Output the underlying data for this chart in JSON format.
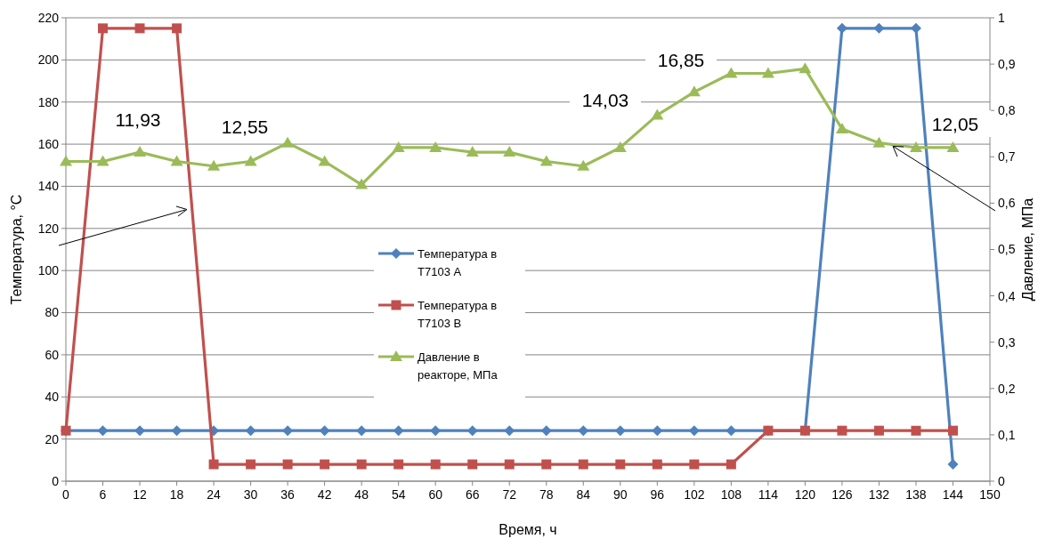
{
  "chart_data": {
    "type": "line",
    "xlabel": "Время, ч",
    "ylabel": "Температура, °C",
    "y2label": "Давление, МПа",
    "x": [
      0,
      6,
      12,
      18,
      24,
      30,
      36,
      42,
      48,
      54,
      60,
      66,
      72,
      78,
      84,
      90,
      96,
      102,
      108,
      114,
      120,
      126,
      132,
      138,
      144
    ],
    "xlim": [
      0,
      150
    ],
    "xticks": [
      0,
      6,
      12,
      18,
      24,
      30,
      36,
      42,
      48,
      54,
      60,
      66,
      72,
      78,
      84,
      90,
      96,
      102,
      108,
      114,
      120,
      126,
      132,
      138,
      144,
      150
    ],
    "ylim": [
      0,
      220
    ],
    "yticks": [
      0,
      20,
      40,
      60,
      80,
      100,
      120,
      140,
      160,
      180,
      200,
      220
    ],
    "y2lim": [
      0,
      1
    ],
    "y2ticks": [
      {
        "value": 0,
        "label": "0"
      },
      {
        "value": 0.1,
        "label": "0,1"
      },
      {
        "value": 0.2,
        "label": "0,2"
      },
      {
        "value": 0.3,
        "label": "0,3"
      },
      {
        "value": 0.4,
        "label": "0,4"
      },
      {
        "value": 0.5,
        "label": "0,5"
      },
      {
        "value": 0.6,
        "label": "0,6"
      },
      {
        "value": 0.7,
        "label": "0,7"
      },
      {
        "value": 0.8,
        "label": "0,8"
      },
      {
        "value": 0.9,
        "label": "0,9"
      },
      {
        "value": 1,
        "label": "1"
      }
    ],
    "grid": "y",
    "legend": "center",
    "line_style": "solid",
    "series": [
      {
        "name": "Температура в Т7103 А",
        "color": "#4f81bd",
        "marker": "diamond",
        "values": [
          24,
          24,
          24,
          24,
          24,
          24,
          24,
          24,
          24,
          24,
          24,
          24,
          24,
          24,
          24,
          24,
          24,
          24,
          24,
          24,
          24,
          215,
          215,
          215,
          8
        ]
      },
      {
        "name": "Температура в Т7103 В",
        "color": "#c0504d",
        "marker": "square",
        "values": [
          24,
          215,
          215,
          215,
          8,
          8,
          8,
          8,
          8,
          8,
          8,
          8,
          8,
          8,
          8,
          8,
          8,
          8,
          8,
          24,
          24,
          24,
          24,
          24,
          24
        ]
      },
      {
        "name": "Давление в реакторе, МПа",
        "color": "#9bbb59",
        "marker": "triangle",
        "axis": "y2",
        "values": [
          0.69,
          0.69,
          0.71,
          0.69,
          0.68,
          0.69,
          0.73,
          0.69,
          0.64,
          0.72,
          0.72,
          0.71,
          0.71,
          0.69,
          0.68,
          0.72,
          0.79,
          0.84,
          0.88,
          0.88,
          0.89,
          0.76,
          0.73,
          0.72,
          0.72
        ]
      }
    ],
    "annotations": [
      "11,93",
      "12,55",
      "14,03",
      "16,85",
      "12,05"
    ]
  }
}
